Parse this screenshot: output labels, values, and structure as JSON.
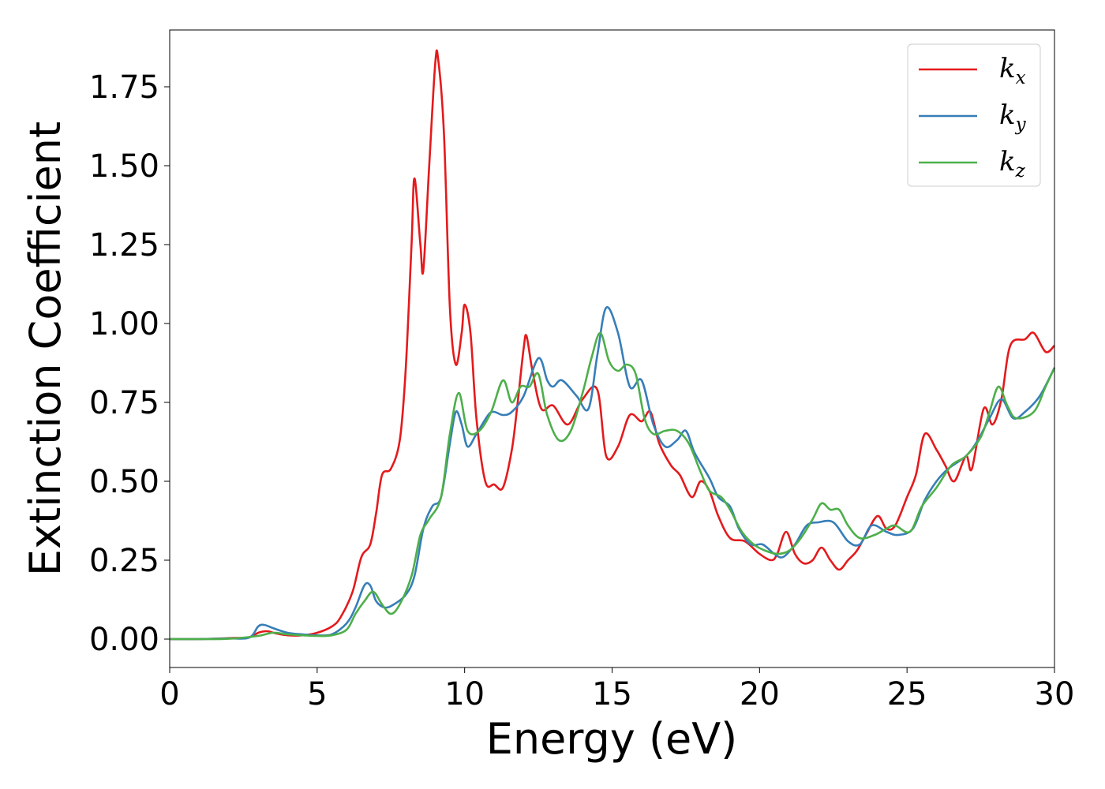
{
  "chart_data": {
    "type": "line",
    "title": "",
    "xlabel": "Energy (eV)",
    "ylabel": "Extinction Coefficient",
    "xlim": [
      0,
      30
    ],
    "ylim": [
      -0.09,
      1.93
    ],
    "x_ticks": [
      0,
      5,
      10,
      15,
      20,
      25,
      30
    ],
    "y_ticks": [
      0.0,
      0.25,
      0.5,
      0.75,
      1.0,
      1.25,
      1.5,
      1.75
    ],
    "grid": false,
    "legend_position": "top-right",
    "series": [
      {
        "name": "k_x",
        "label_base": "k",
        "label_sub": "x",
        "color": "#e41a1c",
        "points": [
          [
            0,
            0
          ],
          [
            1,
            0
          ],
          [
            2,
            0.003
          ],
          [
            2.7,
            0.006
          ],
          [
            3,
            0.02
          ],
          [
            3.3,
            0.025
          ],
          [
            3.6,
            0.018
          ],
          [
            4,
            0.012
          ],
          [
            4.5,
            0.012
          ],
          [
            5,
            0.02
          ],
          [
            5.5,
            0.04
          ],
          [
            5.8,
            0.07
          ],
          [
            6.2,
            0.15
          ],
          [
            6.5,
            0.26
          ],
          [
            6.8,
            0.3
          ],
          [
            7,
            0.4
          ],
          [
            7.2,
            0.52
          ],
          [
            7.5,
            0.54
          ],
          [
            7.8,
            0.63
          ],
          [
            8,
            0.85
          ],
          [
            8.2,
            1.25
          ],
          [
            8.3,
            1.46
          ],
          [
            8.5,
            1.25
          ],
          [
            8.6,
            1.17
          ],
          [
            8.8,
            1.5
          ],
          [
            9,
            1.82
          ],
          [
            9.1,
            1.84
          ],
          [
            9.3,
            1.6
          ],
          [
            9.5,
            1.05
          ],
          [
            9.7,
            0.87
          ],
          [
            9.9,
            0.97
          ],
          [
            10,
            1.06
          ],
          [
            10.2,
            0.97
          ],
          [
            10.4,
            0.7
          ],
          [
            10.7,
            0.5
          ],
          [
            11,
            0.49
          ],
          [
            11.3,
            0.48
          ],
          [
            11.6,
            0.6
          ],
          [
            11.8,
            0.75
          ],
          [
            12,
            0.92
          ],
          [
            12.1,
            0.96
          ],
          [
            12.3,
            0.85
          ],
          [
            12.6,
            0.73
          ],
          [
            13,
            0.74
          ],
          [
            13.5,
            0.68
          ],
          [
            14,
            0.76
          ],
          [
            14.5,
            0.79
          ],
          [
            14.8,
            0.58
          ],
          [
            15.2,
            0.61
          ],
          [
            15.6,
            0.71
          ],
          [
            16,
            0.69
          ],
          [
            16.3,
            0.72
          ],
          [
            16.6,
            0.62
          ],
          [
            17,
            0.55
          ],
          [
            17.3,
            0.52
          ],
          [
            17.7,
            0.45
          ],
          [
            18,
            0.5
          ],
          [
            18.3,
            0.47
          ],
          [
            18.6,
            0.39
          ],
          [
            19,
            0.32
          ],
          [
            19.5,
            0.31
          ],
          [
            20,
            0.27
          ],
          [
            20.4,
            0.25
          ],
          [
            20.6,
            0.27
          ],
          [
            20.9,
            0.34
          ],
          [
            21.2,
            0.27
          ],
          [
            21.5,
            0.24
          ],
          [
            21.8,
            0.25
          ],
          [
            22.1,
            0.29
          ],
          [
            22.4,
            0.25
          ],
          [
            22.7,
            0.22
          ],
          [
            23,
            0.25
          ],
          [
            23.3,
            0.28
          ],
          [
            23.6,
            0.33
          ],
          [
            24,
            0.39
          ],
          [
            24.3,
            0.35
          ],
          [
            24.6,
            0.36
          ],
          [
            25,
            0.45
          ],
          [
            25.3,
            0.52
          ],
          [
            25.6,
            0.65
          ],
          [
            26,
            0.6
          ],
          [
            26.3,
            0.55
          ],
          [
            26.6,
            0.5
          ],
          [
            27,
            0.58
          ],
          [
            27.2,
            0.54
          ],
          [
            27.6,
            0.73
          ],
          [
            27.9,
            0.68
          ],
          [
            28.2,
            0.76
          ],
          [
            28.5,
            0.93
          ],
          [
            29,
            0.95
          ],
          [
            29.3,
            0.97
          ],
          [
            29.7,
            0.91
          ],
          [
            30,
            0.93
          ]
        ]
      },
      {
        "name": "k_y",
        "label_base": "k",
        "label_sub": "y",
        "color": "#377eb8",
        "points": [
          [
            0,
            0
          ],
          [
            1,
            0
          ],
          [
            2,
            0.002
          ],
          [
            2.7,
            0.005
          ],
          [
            3,
            0.04
          ],
          [
            3.2,
            0.045
          ],
          [
            3.5,
            0.035
          ],
          [
            4,
            0.02
          ],
          [
            4.5,
            0.015
          ],
          [
            5,
            0.012
          ],
          [
            5.5,
            0.015
          ],
          [
            6,
            0.05
          ],
          [
            6.3,
            0.1
          ],
          [
            6.6,
            0.17
          ],
          [
            6.8,
            0.17
          ],
          [
            7,
            0.12
          ],
          [
            7.3,
            0.1
          ],
          [
            7.6,
            0.11
          ],
          [
            8,
            0.14
          ],
          [
            8.3,
            0.2
          ],
          [
            8.6,
            0.35
          ],
          [
            8.9,
            0.42
          ],
          [
            9.2,
            0.45
          ],
          [
            9.5,
            0.62
          ],
          [
            9.7,
            0.72
          ],
          [
            9.9,
            0.68
          ],
          [
            10.1,
            0.61
          ],
          [
            10.4,
            0.65
          ],
          [
            10.8,
            0.71
          ],
          [
            11,
            0.72
          ],
          [
            11.3,
            0.71
          ],
          [
            11.6,
            0.72
          ],
          [
            12,
            0.77
          ],
          [
            12.5,
            0.89
          ],
          [
            12.8,
            0.82
          ],
          [
            13,
            0.8
          ],
          [
            13.3,
            0.82
          ],
          [
            13.8,
            0.77
          ],
          [
            14.2,
            0.73
          ],
          [
            14.5,
            0.9
          ],
          [
            14.8,
            1.05
          ],
          [
            15.2,
            0.97
          ],
          [
            15.6,
            0.8
          ],
          [
            16,
            0.82
          ],
          [
            16.4,
            0.68
          ],
          [
            16.8,
            0.61
          ],
          [
            17.2,
            0.63
          ],
          [
            17.5,
            0.66
          ],
          [
            17.8,
            0.59
          ],
          [
            18.3,
            0.51
          ],
          [
            18.6,
            0.45
          ],
          [
            19,
            0.42
          ],
          [
            19.3,
            0.35
          ],
          [
            19.7,
            0.3
          ],
          [
            20.1,
            0.3
          ],
          [
            20.5,
            0.27
          ],
          [
            20.8,
            0.26
          ],
          [
            21.2,
            0.3
          ],
          [
            21.6,
            0.36
          ],
          [
            22,
            0.37
          ],
          [
            22.5,
            0.37
          ],
          [
            23,
            0.31
          ],
          [
            23.4,
            0.3
          ],
          [
            23.8,
            0.36
          ],
          [
            24.3,
            0.34
          ],
          [
            24.7,
            0.33
          ],
          [
            25.2,
            0.35
          ],
          [
            25.6,
            0.44
          ],
          [
            26,
            0.5
          ],
          [
            26.4,
            0.54
          ],
          [
            27,
            0.58
          ],
          [
            27.4,
            0.63
          ],
          [
            27.8,
            0.7
          ],
          [
            28.2,
            0.76
          ],
          [
            28.6,
            0.7
          ],
          [
            29,
            0.72
          ],
          [
            29.5,
            0.77
          ],
          [
            30,
            0.86
          ]
        ]
      },
      {
        "name": "k_z",
        "label_base": "k",
        "label_sub": "z",
        "color": "#4daf4a",
        "points": [
          [
            0,
            0
          ],
          [
            1,
            0
          ],
          [
            2,
            0.001
          ],
          [
            3,
            0.01
          ],
          [
            3.5,
            0.02
          ],
          [
            4,
            0.015
          ],
          [
            4.5,
            0.012
          ],
          [
            5,
            0.01
          ],
          [
            5.5,
            0.012
          ],
          [
            6,
            0.03
          ],
          [
            6.3,
            0.08
          ],
          [
            6.6,
            0.12
          ],
          [
            6.9,
            0.15
          ],
          [
            7.2,
            0.11
          ],
          [
            7.5,
            0.08
          ],
          [
            7.8,
            0.11
          ],
          [
            8.2,
            0.2
          ],
          [
            8.5,
            0.33
          ],
          [
            8.8,
            0.38
          ],
          [
            9.2,
            0.45
          ],
          [
            9.5,
            0.65
          ],
          [
            9.8,
            0.78
          ],
          [
            10.1,
            0.66
          ],
          [
            10.5,
            0.66
          ],
          [
            10.9,
            0.72
          ],
          [
            11.3,
            0.82
          ],
          [
            11.6,
            0.75
          ],
          [
            11.9,
            0.8
          ],
          [
            12.2,
            0.8
          ],
          [
            12.5,
            0.84
          ],
          [
            12.8,
            0.71
          ],
          [
            13.2,
            0.63
          ],
          [
            13.6,
            0.66
          ],
          [
            14,
            0.78
          ],
          [
            14.3,
            0.89
          ],
          [
            14.6,
            0.97
          ],
          [
            14.9,
            0.88
          ],
          [
            15.2,
            0.85
          ],
          [
            15.5,
            0.87
          ],
          [
            15.8,
            0.84
          ],
          [
            16.1,
            0.7
          ],
          [
            16.4,
            0.65
          ],
          [
            16.8,
            0.66
          ],
          [
            17.2,
            0.66
          ],
          [
            17.6,
            0.62
          ],
          [
            18,
            0.53
          ],
          [
            18.3,
            0.47
          ],
          [
            18.7,
            0.45
          ],
          [
            19,
            0.41
          ],
          [
            19.4,
            0.34
          ],
          [
            19.8,
            0.3
          ],
          [
            20.2,
            0.28
          ],
          [
            20.6,
            0.27
          ],
          [
            21,
            0.28
          ],
          [
            21.4,
            0.32
          ],
          [
            21.8,
            0.38
          ],
          [
            22.1,
            0.43
          ],
          [
            22.4,
            0.41
          ],
          [
            22.7,
            0.41
          ],
          [
            23,
            0.36
          ],
          [
            23.4,
            0.32
          ],
          [
            23.9,
            0.33
          ],
          [
            24.3,
            0.35
          ],
          [
            24.6,
            0.36
          ],
          [
            25.1,
            0.34
          ],
          [
            25.5,
            0.42
          ],
          [
            26,
            0.48
          ],
          [
            26.5,
            0.55
          ],
          [
            27,
            0.58
          ],
          [
            27.5,
            0.64
          ],
          [
            27.8,
            0.72
          ],
          [
            28.1,
            0.8
          ],
          [
            28.4,
            0.74
          ],
          [
            28.7,
            0.7
          ],
          [
            29.3,
            0.72
          ],
          [
            29.7,
            0.8
          ],
          [
            30,
            0.86
          ]
        ]
      }
    ]
  }
}
